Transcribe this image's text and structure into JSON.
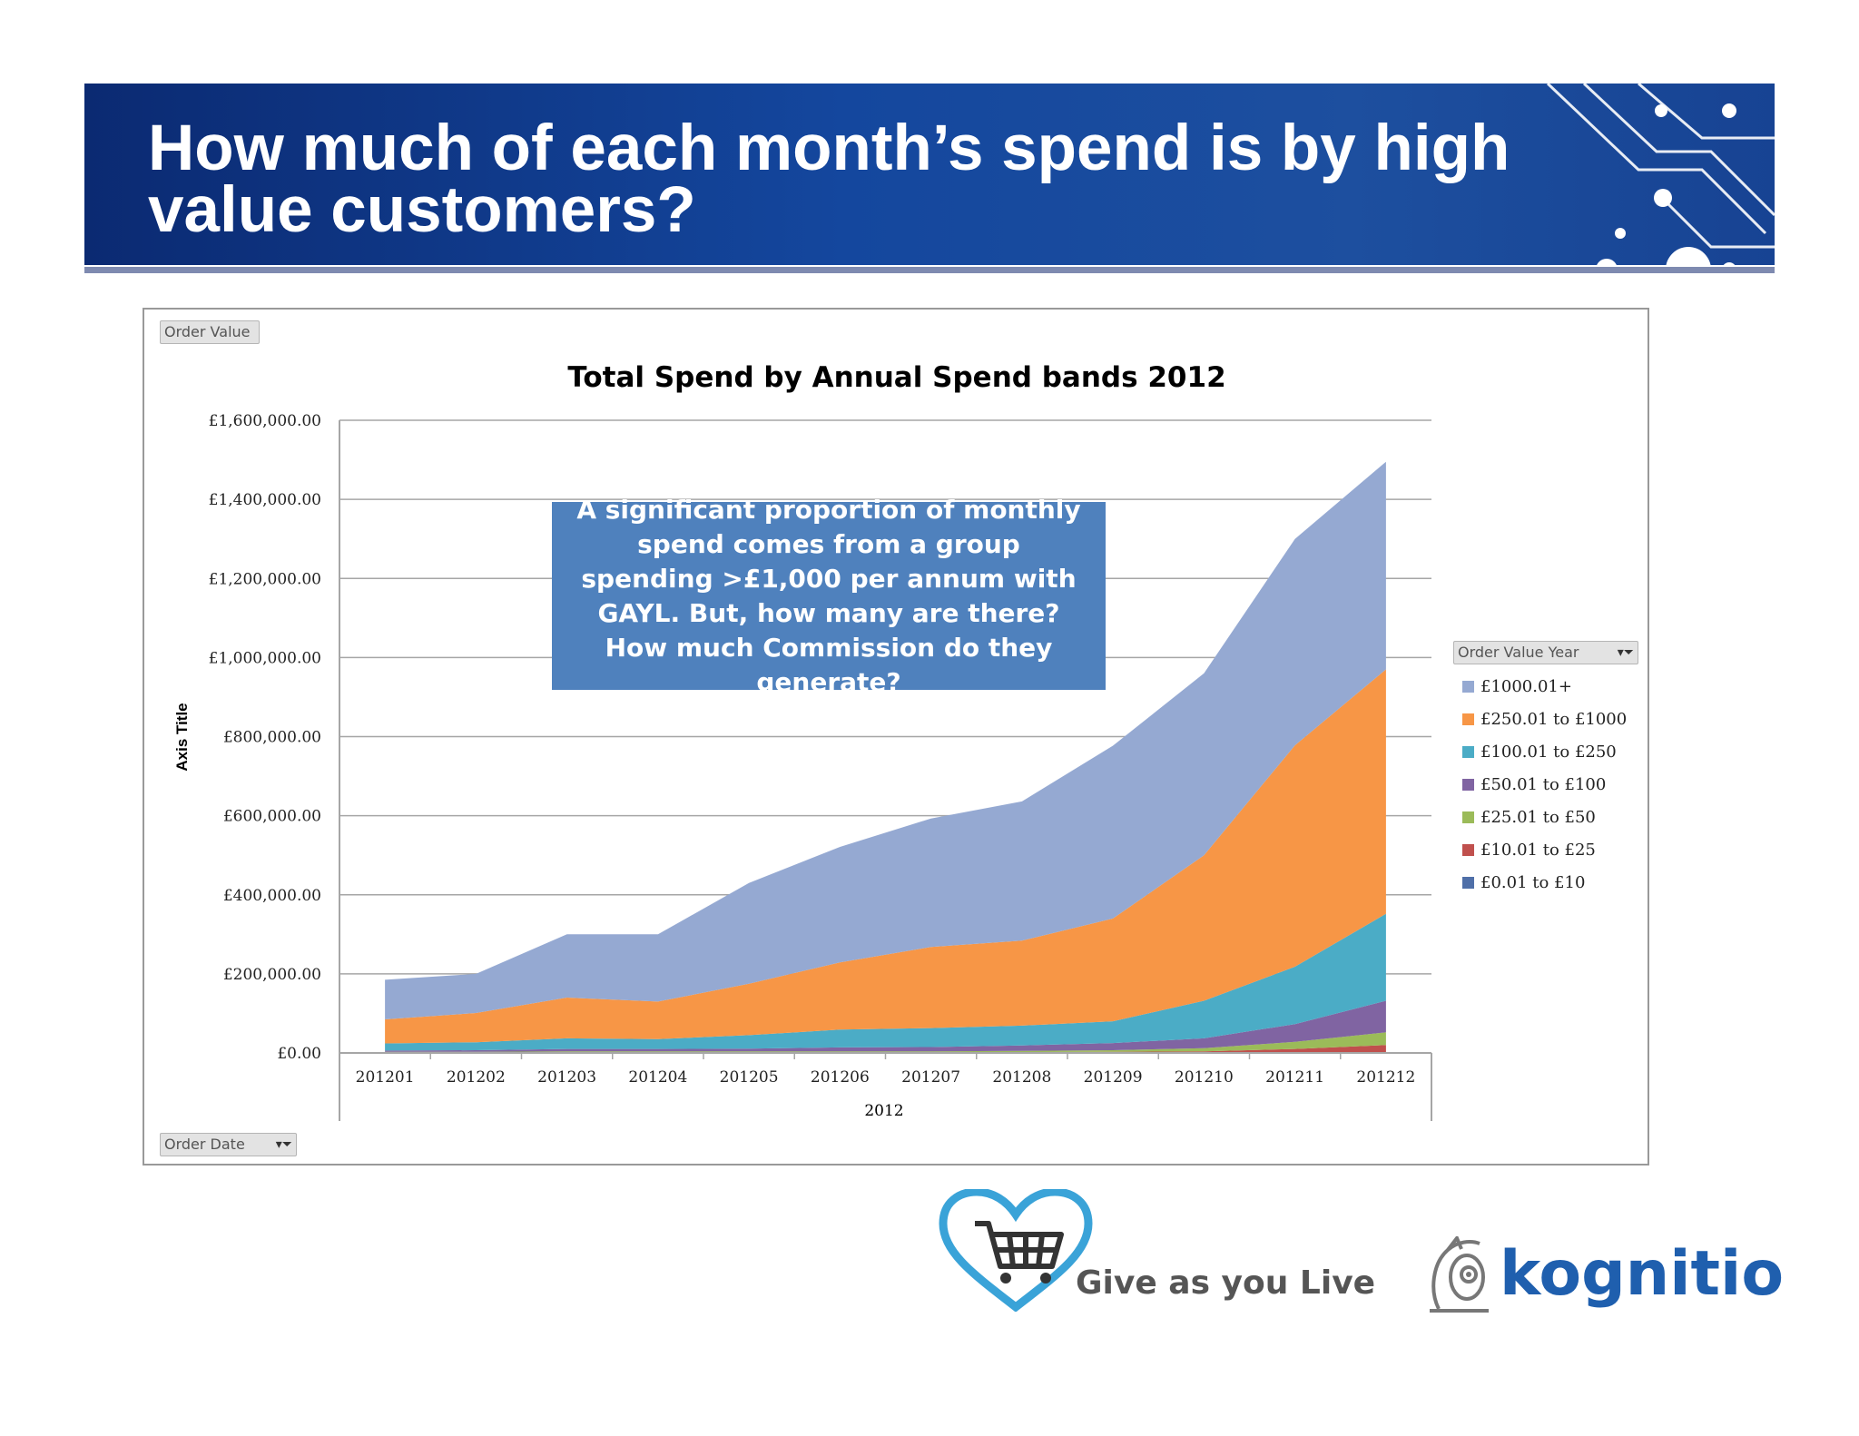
{
  "slide": {
    "title": "How much of each month’s spend is by high value customers?"
  },
  "pivot_buttons": {
    "order_value": "Order Value",
    "order_date": "Order Date",
    "order_value_year": "Order Value Year"
  },
  "callout": {
    "text": "A significant proportion of monthly spend comes from a group spending >£1,000 per annum with GAYL.  But, how many are there? How much Commission do they generate?"
  },
  "logos": {
    "gayl": "Give as you Live",
    "kognitio": "kognitio"
  },
  "colors": {
    "banner": "#14479e",
    "callout": "#4f81bd"
  },
  "icons": {
    "filter": "filter-icon",
    "cart": "shopping-cart-heart-icon",
    "owl": "owl-icon"
  },
  "chart_data": {
    "type": "area",
    "stacked": true,
    "title": "Total Spend by Annual Spend bands 2012",
    "ylabel": "Axis Title",
    "xlabel": "2012",
    "ylim": [
      0,
      1600000
    ],
    "yticks": [
      0,
      200000,
      400000,
      600000,
      800000,
      1000000,
      1200000,
      1400000,
      1600000
    ],
    "ytick_labels": [
      "£0.00",
      "£200,000.00",
      "£400,000.00",
      "£600,000.00",
      "£800,000.00",
      "£1,000,000.00",
      "£1,200,000.00",
      "£1,400,000.00",
      "£1,600,000.00"
    ],
    "categories": [
      "201201",
      "201202",
      "201203",
      "201204",
      "201205",
      "201206",
      "201207",
      "201208",
      "201209",
      "201210",
      "201211",
      "201212"
    ],
    "grid": true,
    "legend_position": "right",
    "legend_title": "Order Value Year",
    "series": [
      {
        "name": "£0.01 to £10",
        "color": "#4f6fa8",
        "values": [
          1000,
          1000,
          1000,
          1000,
          1000,
          1000,
          1000,
          1000,
          1000,
          1000,
          2000,
          2000
        ]
      },
      {
        "name": "£10.01 to £25",
        "color": "#c0504d",
        "values": [
          1000,
          1000,
          1000,
          1000,
          1000,
          1000,
          1000,
          1000,
          2000,
          3000,
          8000,
          18000
        ]
      },
      {
        "name": "£25.01 to £50",
        "color": "#9bbb59",
        "values": [
          1000,
          1000,
          2000,
          2000,
          2000,
          2000,
          2000,
          3000,
          4000,
          8000,
          18000,
          32000
        ]
      },
      {
        "name": "£50.01 to £100",
        "color": "#8064a2",
        "values": [
          3000,
          4000,
          6000,
          6000,
          7000,
          10000,
          11000,
          14000,
          18000,
          25000,
          45000,
          80000
        ]
      },
      {
        "name": "£100.01 to £250",
        "color": "#4bacc6",
        "values": [
          18000,
          20000,
          27000,
          25000,
          34000,
          45000,
          48000,
          50000,
          55000,
          95000,
          145000,
          220000
        ]
      },
      {
        "name": "£250.01 to £1000",
        "color": "#f79646",
        "values": [
          61000,
          74000,
          103000,
          95000,
          130000,
          170000,
          205000,
          215000,
          260000,
          368000,
          560000,
          618000
        ]
      },
      {
        "name": "£1000.01+",
        "color": "#95a9d2",
        "values": [
          100000,
          99000,
          160000,
          170000,
          255000,
          292000,
          325000,
          352000,
          437000,
          460000,
          522000,
          525000
        ]
      }
    ]
  }
}
